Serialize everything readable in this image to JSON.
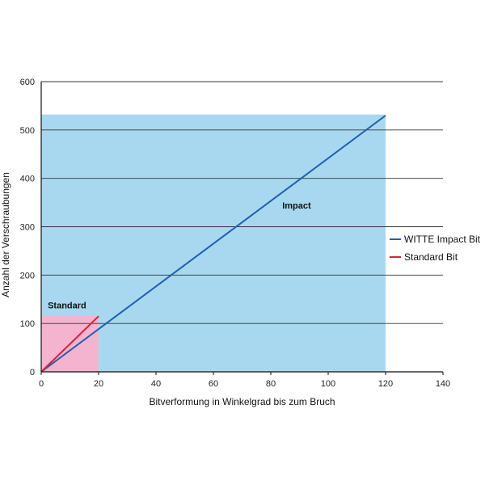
{
  "chart_data": {
    "type": "line",
    "xlabel": "Bitverformung in Winkelgrad bis zum Bruch",
    "ylabel": "Anzahl der Verschraubungen",
    "xlim": [
      0,
      140
    ],
    "ylim": [
      0,
      600
    ],
    "x_ticks": [
      0,
      20,
      40,
      60,
      80,
      100,
      120,
      140
    ],
    "y_ticks": [
      0,
      100,
      200,
      300,
      400,
      500,
      600
    ],
    "grid": "horizontal",
    "legend_position": "right",
    "series": [
      {
        "name": "WITTE Impact Bit",
        "color": "#1f5fae",
        "x": [
          0,
          120
        ],
        "y": [
          0,
          530
        ]
      },
      {
        "name": "Standard Bit",
        "color": "#d6203c",
        "x": [
          0,
          20
        ],
        "y": [
          0,
          115
        ]
      }
    ],
    "regions": [
      {
        "label": "Impact",
        "color": "#a8d8f0",
        "x": [
          0,
          120
        ],
        "y": [
          0,
          532
        ],
        "label_at": [
          89,
          338
        ]
      },
      {
        "label": "Standard",
        "color": "#f4b4cf",
        "x": [
          0,
          20
        ],
        "y": [
          0,
          115
        ],
        "label_at": [
          9,
          131
        ]
      }
    ]
  }
}
